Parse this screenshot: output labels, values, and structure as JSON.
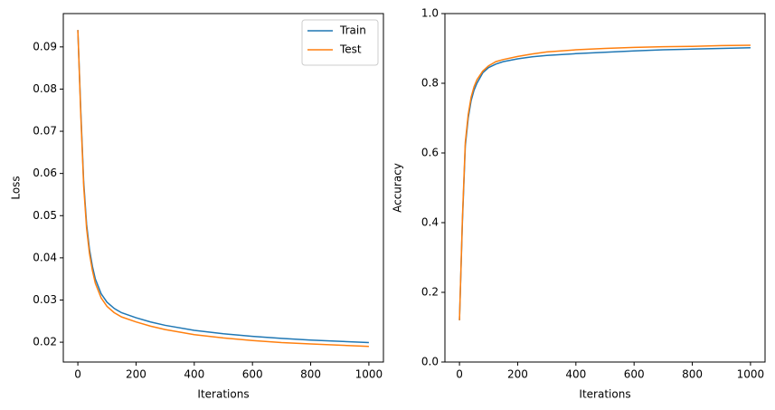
{
  "chart_data": [
    {
      "type": "line",
      "xlabel": "Iterations",
      "ylabel": "Loss",
      "x": [
        0,
        10,
        20,
        30,
        40,
        50,
        60,
        80,
        100,
        125,
        150,
        200,
        250,
        300,
        400,
        500,
        600,
        700,
        800,
        900,
        1000
      ],
      "series": [
        {
          "name": "Train",
          "color": "#1f77b4",
          "values": [
            0.094,
            0.075,
            0.058,
            0.048,
            0.042,
            0.038,
            0.035,
            0.0315,
            0.0295,
            0.028,
            0.027,
            0.0258,
            0.0248,
            0.024,
            0.0228,
            0.022,
            0.0214,
            0.0209,
            0.0205,
            0.0202,
            0.0199
          ]
        },
        {
          "name": "Test",
          "color": "#ff7f0e",
          "values": [
            0.094,
            0.074,
            0.057,
            0.047,
            0.041,
            0.037,
            0.034,
            0.0305,
            0.0285,
            0.027,
            0.026,
            0.0248,
            0.0238,
            0.023,
            0.0218,
            0.021,
            0.0204,
            0.0199,
            0.0196,
            0.0193,
            0.019
          ]
        }
      ],
      "xlim": [
        -50,
        1050
      ],
      "xticks": [
        0,
        200,
        400,
        600,
        800,
        1000
      ],
      "ylim": [
        0.0153,
        0.0979
      ],
      "yticks": [
        0.02,
        0.03,
        0.04,
        0.05,
        0.06,
        0.07,
        0.08,
        0.09
      ],
      "legend": "upper right"
    },
    {
      "type": "line",
      "xlabel": "Iterations",
      "ylabel": "Accuracy",
      "x": [
        0,
        10,
        20,
        30,
        40,
        50,
        60,
        80,
        100,
        125,
        150,
        200,
        250,
        300,
        400,
        500,
        600,
        700,
        800,
        900,
        1000
      ],
      "series": [
        {
          "color": "#1f77b4",
          "values": [
            0.12,
            0.4,
            0.62,
            0.7,
            0.75,
            0.78,
            0.8,
            0.83,
            0.845,
            0.855,
            0.862,
            0.87,
            0.876,
            0.88,
            0.885,
            0.889,
            0.893,
            0.896,
            0.898,
            0.9,
            0.902
          ]
        },
        {
          "color": "#ff7f0e",
          "values": [
            0.12,
            0.41,
            0.63,
            0.71,
            0.76,
            0.79,
            0.81,
            0.835,
            0.85,
            0.862,
            0.868,
            0.877,
            0.884,
            0.89,
            0.896,
            0.9,
            0.903,
            0.905,
            0.906,
            0.908,
            0.909
          ]
        }
      ],
      "xlim": [
        -50,
        1050
      ],
      "xticks": [
        0,
        200,
        400,
        600,
        800,
        1000
      ],
      "ylim": [
        0,
        1
      ],
      "yticks": [
        {
          "value": 0,
          "label": "0.0"
        },
        0.2,
        0.4,
        0.6,
        0.8,
        {
          "value": 1,
          "label": "1.0"
        }
      ]
    }
  ]
}
